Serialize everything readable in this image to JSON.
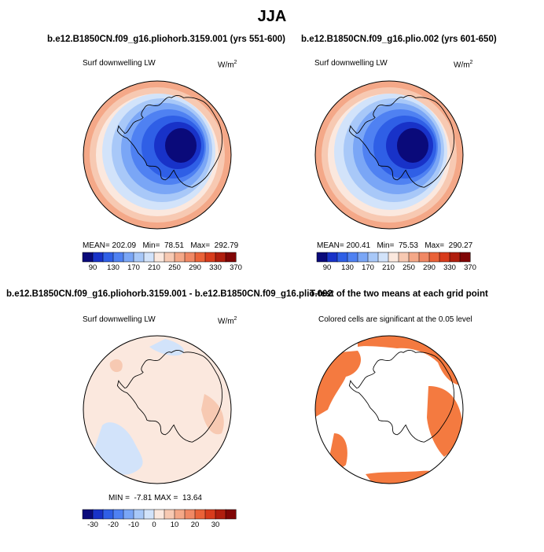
{
  "figure": {
    "title": "JJA"
  },
  "panels": [
    {
      "title": "b.e12.B1850CN.f09_g16.pliohorb.3159.001 (yrs 551-600)",
      "left_label": "Surf downwelling LW",
      "units_base": "W/m",
      "units_exp": "2",
      "stats": {
        "mean_label": "MEAN=",
        "mean": "202.09",
        "min_label": "Min=",
        "min": "78.51",
        "max_label": "Max=",
        "max": "292.79"
      }
    },
    {
      "title": "b.e12.B1850CN.f09_g16.plio.002 (yrs 601-650)",
      "left_label": "Surf downwelling LW",
      "units_base": "W/m",
      "units_exp": "2",
      "stats": {
        "mean_label": "MEAN=",
        "mean": "200.41",
        "min_label": "Min=",
        "min": "75.53",
        "max_label": "Max=",
        "max": "290.27"
      }
    },
    {
      "title": "b.e12.B1850CN.f09_g16.pliohorb.3159.001 - b.e12.B1850CN.f09_g16.plio.002",
      "left_label": "Surf downwelling LW",
      "units_base": "W/m",
      "units_exp": "2",
      "stats": {
        "min_label": "MIN =",
        "min": "-7.81",
        "max_label": "MAX =",
        "max": "13.64"
      }
    },
    {
      "title": "T-test of the two means at each grid point",
      "left_label": "Colored cells are significant at the 0.05 level"
    }
  ],
  "colorbars": {
    "abs": {
      "labels": [
        "90",
        "130",
        "170",
        "210",
        "250",
        "290",
        "330",
        "370"
      ],
      "colors": [
        "#0a0a7a",
        "#1832c8",
        "#2f5fe6",
        "#4f81f2",
        "#7aa6f6",
        "#a8c8f8",
        "#d2e3fa",
        "#fbe8de",
        "#f7c9b2",
        "#f4a888",
        "#f08864",
        "#ea6238",
        "#d83c1c",
        "#b01e0e",
        "#800606"
      ]
    },
    "diff": {
      "labels": [
        "-30",
        "-20",
        "-10",
        "0",
        "10",
        "20",
        "30"
      ],
      "colors": [
        "#0a0a7a",
        "#1832c8",
        "#2f5fe6",
        "#4f81f2",
        "#7aa6f6",
        "#a8c8f8",
        "#d2e3fa",
        "#fbe8de",
        "#f7c9b2",
        "#f4a888",
        "#f08864",
        "#ea6238",
        "#d83c1c",
        "#b01e0e",
        "#800606"
      ]
    }
  },
  "colors": {
    "significant": "#f47a40",
    "coast": "#000000"
  }
}
